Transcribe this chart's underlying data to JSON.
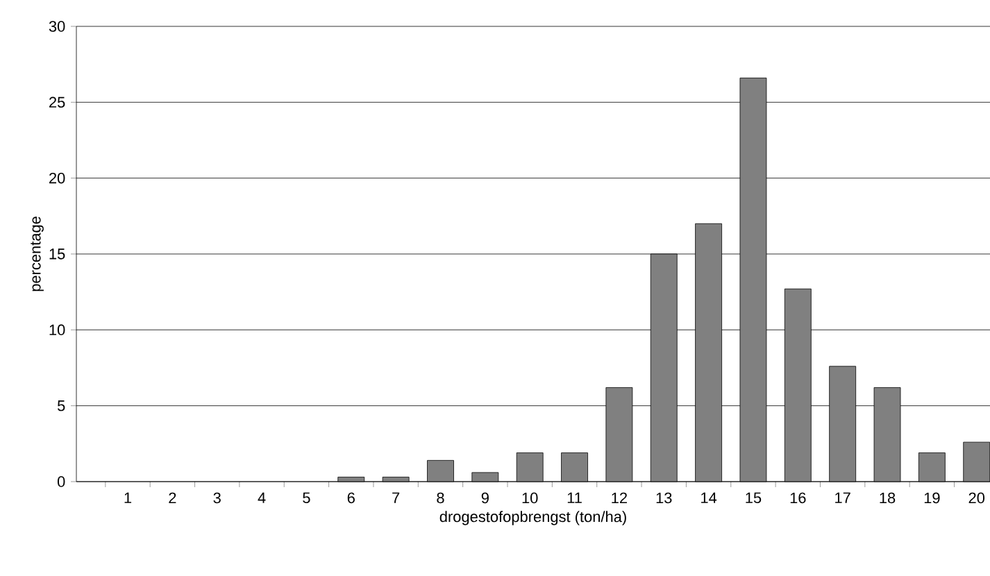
{
  "chart_data": {
    "type": "bar",
    "xlabel": "drogestofopbrengst (ton/ha)",
    "ylabel": "percentage",
    "categories": [
      "1",
      "2",
      "3",
      "4",
      "5",
      "6",
      "7",
      "8",
      "9",
      "10",
      "11",
      "12",
      "13",
      "14",
      "15",
      "16",
      "17",
      "18",
      "19",
      "20"
    ],
    "values": [
      0,
      0,
      0,
      0,
      0,
      0.3,
      0.3,
      1.4,
      0.6,
      1.9,
      1.9,
      6.2,
      15.0,
      17.0,
      26.6,
      12.7,
      7.6,
      6.2,
      1.9,
      2.6
    ],
    "color": "#808080",
    "ylim": [
      0,
      30
    ],
    "yticks": [
      0,
      5,
      10,
      15,
      20,
      25,
      30
    ],
    "grid": "y"
  }
}
